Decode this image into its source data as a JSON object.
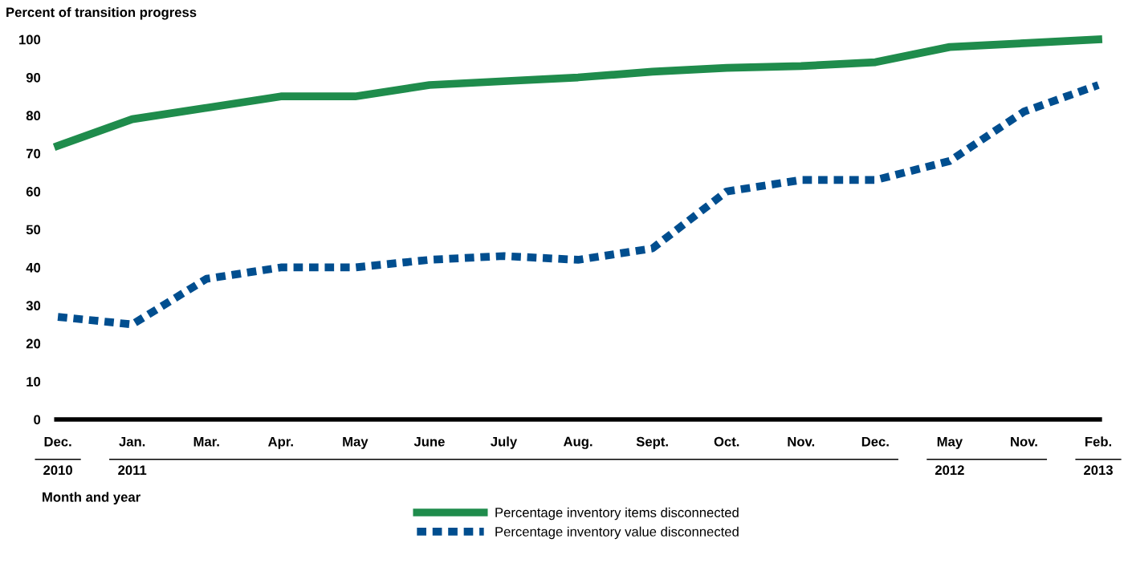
{
  "chart_data": {
    "type": "line",
    "ylabel": "Percent of transition progress",
    "xlabel": "Month and year",
    "categories": [
      "Dec.\n2010",
      "Jan.\n2011",
      "Mar.",
      "Apr.",
      "May",
      "June",
      "July",
      "Aug.",
      "Sept.",
      "Oct.",
      "Nov.",
      "Dec.",
      "May\n2012",
      "Nov.",
      "Feb.\n2013"
    ],
    "series": [
      {
        "name": "Percentage inventory items disconnected",
        "color": "#1f8c4c",
        "line_style": "solid",
        "values": [
          72,
          79,
          82,
          85,
          85,
          88,
          89,
          90,
          91.5,
          92.5,
          93,
          94,
          98,
          99,
          100
        ]
      },
      {
        "name": "Percentage inventory value disconnected",
        "color": "#004e8f",
        "line_style": "dashed",
        "values": [
          27,
          25,
          37,
          40,
          40,
          42,
          43,
          42,
          45,
          60,
          63,
          63,
          68,
          81,
          88
        ]
      }
    ],
    "ylim": [
      0,
      100
    ],
    "yticks": [
      0,
      10,
      20,
      30,
      40,
      50,
      60,
      70,
      80,
      90,
      100
    ],
    "grid": false,
    "legend": "bottom",
    "marker": "none"
  }
}
